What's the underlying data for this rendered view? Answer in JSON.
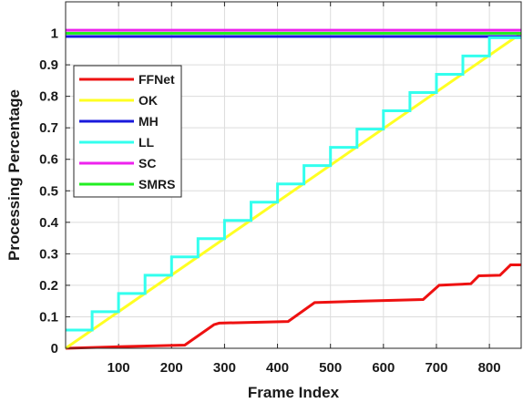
{
  "chart_data": {
    "type": "line",
    "xlabel": "Frame Index",
    "ylabel": "Processing Percentage",
    "xlim": [
      0,
      860
    ],
    "ylim": [
      0,
      1.1
    ],
    "xticks": [
      100,
      200,
      300,
      400,
      500,
      600,
      700,
      800
    ],
    "xtick_labels": [
      "100",
      "200",
      "300",
      "400",
      "500",
      "600",
      "700",
      "800"
    ],
    "yticks": [
      0,
      0.1,
      0.2,
      0.3,
      0.4,
      0.5,
      0.6,
      0.7,
      0.8,
      0.9,
      1
    ],
    "ytick_labels": [
      "0",
      "0.1",
      "0.2",
      "0.3",
      "0.4",
      "0.5",
      "0.6",
      "0.7",
      "0.8",
      "0.9",
      "1"
    ],
    "grid": true,
    "legend_position": "upper-left",
    "series": [
      {
        "name": "FFNet",
        "color": "#ee1111",
        "x": [
          0,
          100,
          225,
          280,
          290,
          420,
          470,
          560,
          675,
          705,
          765,
          780,
          820,
          840,
          860
        ],
        "y": [
          0,
          0.005,
          0.01,
          0.075,
          0.08,
          0.085,
          0.145,
          0.15,
          0.155,
          0.2,
          0.205,
          0.23,
          0.232,
          0.265,
          0.265
        ]
      },
      {
        "name": "OK",
        "color": "#ffff22",
        "x": [
          0,
          860
        ],
        "y": [
          0,
          1.0
        ]
      },
      {
        "name": "MH",
        "color": "#1a1adc",
        "x": [
          0,
          860
        ],
        "y": [
          0.99,
          0.99
        ]
      },
      {
        "name": "LL",
        "color": "#33ffee",
        "x": [
          0,
          50,
          50,
          100,
          100,
          150,
          150,
          200,
          200,
          250,
          250,
          300,
          300,
          350,
          350,
          400,
          400,
          450,
          450,
          500,
          500,
          550,
          550,
          600,
          600,
          650,
          650,
          700,
          700,
          750,
          750,
          800,
          800,
          860
        ],
        "y": [
          0.058,
          0.058,
          0.116,
          0.116,
          0.174,
          0.174,
          0.232,
          0.232,
          0.29,
          0.29,
          0.348,
          0.348,
          0.406,
          0.406,
          0.464,
          0.464,
          0.522,
          0.522,
          0.58,
          0.58,
          0.638,
          0.638,
          0.696,
          0.696,
          0.754,
          0.754,
          0.812,
          0.812,
          0.87,
          0.87,
          0.928,
          0.928,
          0.986,
          0.986
        ]
      },
      {
        "name": "SC",
        "color": "#ee22ee",
        "x": [
          0,
          860
        ],
        "y": [
          1.01,
          1.01
        ]
      },
      {
        "name": "SMRS",
        "color": "#22ee22",
        "x": [
          0,
          860
        ],
        "y": [
          1.0,
          1.0
        ]
      }
    ]
  }
}
